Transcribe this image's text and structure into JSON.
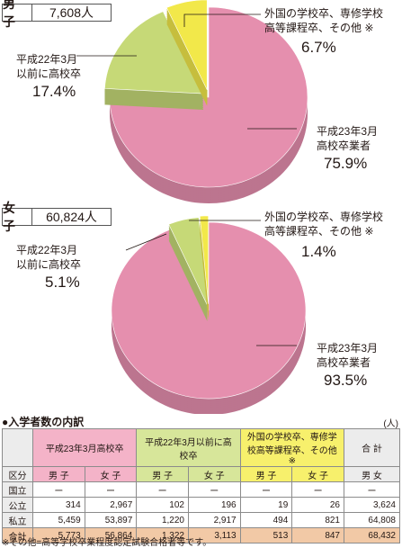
{
  "chart_data": [
    {
      "type": "pie",
      "gender": "男 子",
      "count": "7,608人",
      "slices": [
        {
          "label": "平成23年3月\n高校卒業者",
          "value": 75.9,
          "display": "75.9%",
          "color": "#e58fae"
        },
        {
          "label": "平成22年3月\n以前に高校卒",
          "value": 17.4,
          "display": "17.4%",
          "color": "#c6d977"
        },
        {
          "label": "外国の学校卒、専修学校\n高等課程卒、その他 ※",
          "value": 6.7,
          "display": "6.7%",
          "color": "#f2e84a"
        }
      ]
    },
    {
      "type": "pie",
      "gender": "女 子",
      "count": "60,824人",
      "slices": [
        {
          "label": "平成23年3月\n高校卒業者",
          "value": 93.5,
          "display": "93.5%",
          "color": "#e58fae"
        },
        {
          "label": "平成22年3月\n以前に高校卒",
          "value": 5.1,
          "display": "5.1%",
          "color": "#c6d977"
        },
        {
          "label": "外国の学校卒、専修学校\n高等課程卒、その他 ※",
          "value": 1.4,
          "display": "1.4%",
          "color": "#f2e84a"
        }
      ]
    }
  ],
  "pies": [
    {
      "gender": "男 子",
      "count": "7,608人",
      "s1_line1": "平成23年3月",
      "s1_line2": "高校卒業者",
      "s1_pct": "75.9%",
      "s2_line1": "平成22年3月",
      "s2_line2": "以前に高校卒",
      "s2_pct": "17.4%",
      "s3_line1": "外国の学校卒、専修学校",
      "s3_line2": "高等課程卒、その他 ※",
      "s3_pct": "6.7%"
    },
    {
      "gender": "女 子",
      "count": "60,824人",
      "s1_line1": "平成23年3月",
      "s1_line2": "高校卒業者",
      "s1_pct": "93.5%",
      "s2_line1": "平成22年3月",
      "s2_line2": "以前に高校卒",
      "s2_pct": "5.1%",
      "s3_line1": "外国の学校卒、専修学校",
      "s3_line2": "高等課程卒、その他 ※",
      "s3_pct": "1.4%"
    }
  ],
  "table": {
    "title": "●入学者数の内訳",
    "unit": "(人)",
    "group_headers": [
      "平成23年3月高校卒",
      "平成22年3月以前に高校卒",
      "外国の学校卒、専修学校高等課程卒、その他 ※",
      "合 計"
    ],
    "sub_headers": [
      "区分",
      "男 子",
      "女 子",
      "男 子",
      "女 子",
      "男 子",
      "女 子",
      "男 女"
    ],
    "rows": [
      [
        "国立",
        "ー",
        "ー",
        "ー",
        "ー",
        "ー",
        "ー",
        "ー"
      ],
      [
        "公立",
        "314",
        "2,967",
        "102",
        "196",
        "19",
        "26",
        "3,624"
      ],
      [
        "私立",
        "5,459",
        "53,897",
        "1,220",
        "2,917",
        "494",
        "821",
        "64,808"
      ],
      [
        "合計",
        "5,773",
        "56,864",
        "1,322",
        "3,113",
        "513",
        "847",
        "68,432"
      ]
    ]
  },
  "note": "※その他=高等学校卒業程度認定試験合格者等です。"
}
